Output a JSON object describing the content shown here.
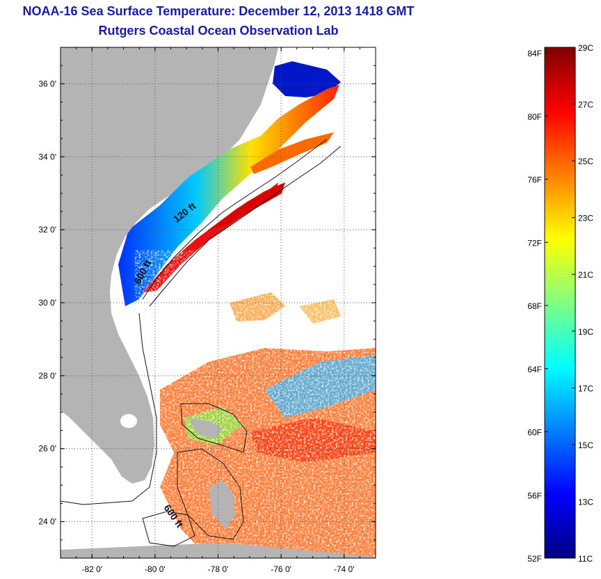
{
  "header": {
    "title": "NOAA-16 Sea Surface Temperature:  December 12, 2013 1418 GMT",
    "subtitle": "Rutgers Coastal Ocean Observation Lab"
  },
  "map": {
    "lon_range": [
      -83,
      -73
    ],
    "lat_range": [
      23,
      37
    ],
    "lat_ticks": [
      {
        "value": 36,
        "label": "36 0'"
      },
      {
        "value": 34,
        "label": "34 0'"
      },
      {
        "value": 32,
        "label": "32 0'"
      },
      {
        "value": 30,
        "label": "30 0'"
      },
      {
        "value": 28,
        "label": "28 0'"
      },
      {
        "value": 26,
        "label": "26 0'"
      },
      {
        "value": 24,
        "label": "24 0'"
      }
    ],
    "lon_ticks": [
      {
        "value": -82,
        "label": "-82 0'"
      },
      {
        "value": -80,
        "label": "-80 0'"
      },
      {
        "value": -78,
        "label": "-78 0'"
      },
      {
        "value": -76,
        "label": "-76 0'"
      },
      {
        "value": -74,
        "label": "-74 0'"
      }
    ],
    "grid": "dotted",
    "land_color": "#b4b4b4",
    "contours": [
      {
        "label": "120 ft",
        "lon": -79.0,
        "lat": 32.4
      },
      {
        "label": "600 ft",
        "lon": -80.3,
        "lat": 30.8
      },
      {
        "label": "600 ft",
        "lon": -79.5,
        "lat": 24.1
      }
    ]
  },
  "colorbar": {
    "left_labels": [
      "84F",
      "80F",
      "76F",
      "72F",
      "68F",
      "64F",
      "60F",
      "56F",
      "52F"
    ],
    "right_labels": [
      "29C",
      "27C",
      "25C",
      "23C",
      "21C",
      "19C",
      "17C",
      "15C",
      "13C",
      "11C"
    ],
    "colors": [
      "#800000",
      "#ff0000",
      "#ff8000",
      "#ffff00",
      "#80ff80",
      "#00ffff",
      "#0080ff",
      "#0000ff",
      "#000080"
    ]
  }
}
